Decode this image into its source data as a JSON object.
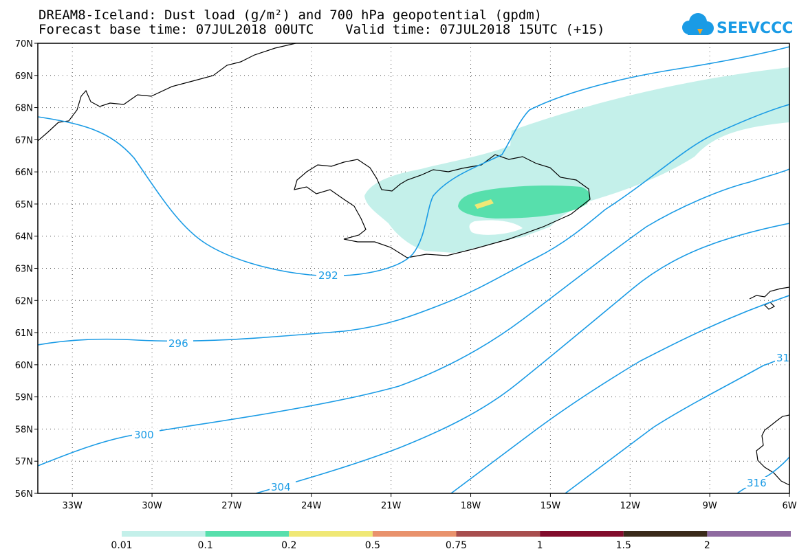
{
  "title": {
    "line1": "DREAM8-Iceland: Dust load (g/m²) and 700 hPa geopotential (gpdm)",
    "line2": "Forecast base time: 07JUL2018 00UTC    Valid time: 07JUL2018 15UTC (+15)"
  },
  "logo": {
    "text": "SEEVCCC",
    "icon": "cloud-logo-icon",
    "color": "#1a9be5"
  },
  "map": {
    "lat_labels": [
      "70N",
      "69N",
      "68N",
      "67N",
      "66N",
      "65N",
      "64N",
      "63N",
      "62N",
      "61N",
      "60N",
      "59N",
      "58N",
      "57N",
      "56N"
    ],
    "lon_labels": [
      "33W",
      "30W",
      "27W",
      "24W",
      "21W",
      "18W",
      "15W",
      "12W",
      "9W",
      "6W"
    ],
    "contour_labels": [
      "292",
      "296",
      "300",
      "304",
      "316",
      "31"
    ],
    "contour_color": "#1a9be5",
    "coast_color": "#000000"
  },
  "legend": {
    "colors": [
      "#c4f0ea",
      "#57dfac",
      "#f0e875",
      "#e9926c",
      "#a84e4e",
      "#820c2c",
      "#3a2a1a",
      "#8e6aa0"
    ],
    "labels": [
      "0.01",
      "0.1",
      "0.2",
      "0.5",
      "0.75",
      "1",
      "1.5",
      "2"
    ]
  },
  "dust_colors": {
    "low": "#c4f0ea",
    "mid": "#57dfac",
    "high": "#f0e875"
  }
}
